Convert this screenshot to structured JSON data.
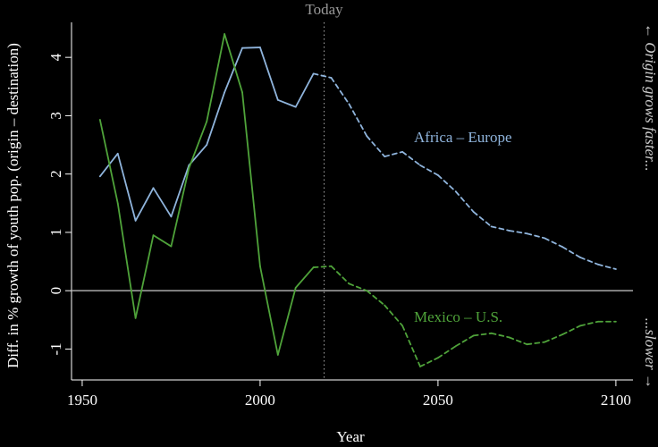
{
  "chart_data": {
    "type": "line",
    "xlabel": "Year",
    "ylabel": "Diff. in % growth of youth pop. (origin – destination)",
    "right_labels": [
      "← Origin grows faster...",
      "...slower →"
    ],
    "annotation": {
      "text": "Today",
      "x": 2018
    },
    "x": [
      1955,
      1960,
      1965,
      1970,
      1975,
      1980,
      1985,
      1990,
      1995,
      2000,
      2005,
      2010,
      2015,
      2020,
      2025,
      2030,
      2035,
      2040,
      2045,
      2050,
      2055,
      2060,
      2065,
      2070,
      2075,
      2080,
      2085,
      2090,
      2095,
      2100
    ],
    "series": [
      {
        "name": "Africa – Europe",
        "color": "#8fb4dc",
        "values": [
          1.96,
          2.35,
          1.2,
          1.76,
          1.27,
          2.15,
          2.5,
          3.4,
          4.16,
          4.17,
          3.27,
          3.15,
          3.72,
          3.65,
          3.2,
          2.65,
          2.3,
          2.38,
          2.15,
          1.98,
          1.7,
          1.35,
          1.1,
          1.03,
          0.98,
          0.9,
          0.75,
          0.57,
          0.45,
          0.37
        ]
      },
      {
        "name": "Mexico – U.S.",
        "color": "#4fa33a",
        "values": [
          2.93,
          1.5,
          -0.47,
          0.95,
          0.76,
          2.1,
          2.9,
          4.4,
          3.4,
          0.42,
          -1.1,
          0.05,
          0.4,
          0.42,
          0.12,
          0,
          -0.25,
          -0.6,
          -1.3,
          -1.15,
          -0.95,
          -0.77,
          -0.73,
          -0.8,
          -0.92,
          -0.88,
          -0.75,
          -0.6,
          -0.53,
          -0.53
        ]
      }
    ],
    "xlim": [
      1947,
      2104.8
    ],
    "ylim": [
      -1.53,
      4.6
    ],
    "xticks": [
      1950,
      2000,
      2050,
      2100
    ],
    "yticks": [
      -1,
      0,
      1,
      2,
      3,
      4
    ]
  }
}
